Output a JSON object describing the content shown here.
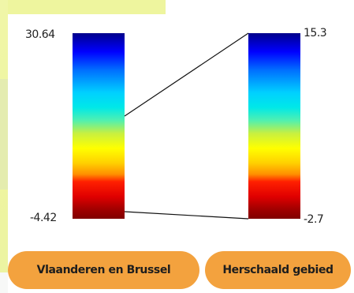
{
  "legend": {
    "left": {
      "max": "30.64",
      "min": "-4.42"
    },
    "right": {
      "max": "15.3",
      "min": "-2.7"
    }
  },
  "buttons": {
    "vlaanderen": "Vlaanderen en Brussel",
    "herschaald": "Herschaald gebied"
  },
  "colors": {
    "button": "#f3a23e",
    "map_tint": "#eef59e"
  }
}
